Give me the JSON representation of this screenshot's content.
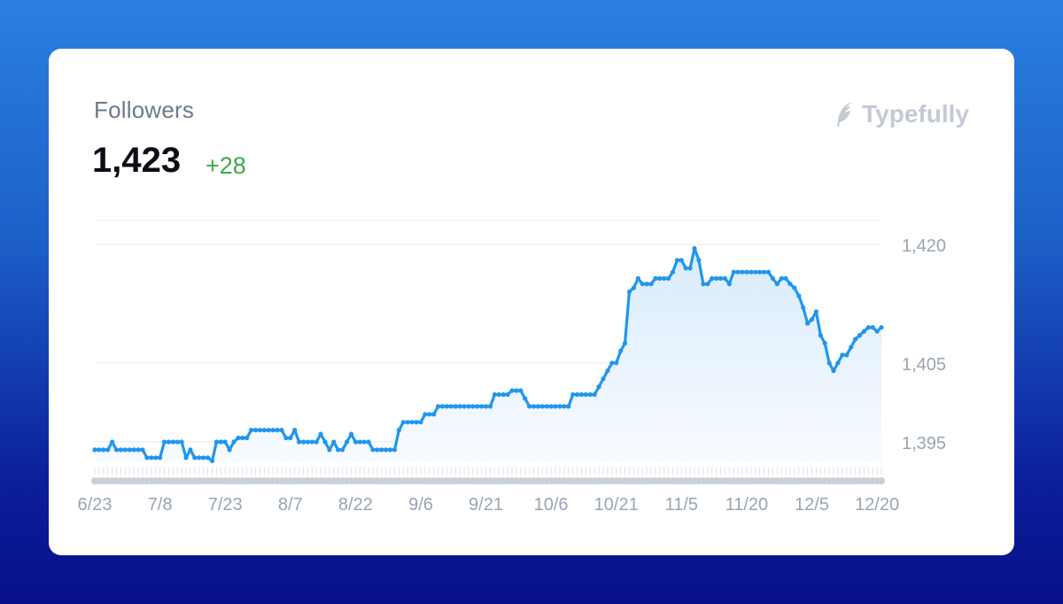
{
  "card": {
    "title": "Followers",
    "value": "1,423",
    "delta": "+28"
  },
  "brand": {
    "name": "Typefully",
    "icon": "feather-icon"
  },
  "colors": {
    "line": "#2196ee",
    "fill": "#e8f3fd",
    "grid": "#e6ebf0",
    "axis_text": "#9aa5b1",
    "delta": "#3aab47",
    "marker": "#c9d0d7"
  },
  "chart_data": {
    "type": "line",
    "title": "Followers",
    "xlabel": "",
    "ylabel": "",
    "x_ticks": [
      "6/23",
      "7/8",
      "7/23",
      "8/7",
      "8/22",
      "9/6",
      "9/21",
      "10/6",
      "10/21",
      "11/5",
      "11/20",
      "12/5",
      "12/20"
    ],
    "y_ticks": [
      "1,395",
      "1,405",
      "1,420"
    ],
    "y_tick_values": [
      1395,
      1405,
      1420
    ],
    "ylim": [
      1392.5,
      1423.3
    ],
    "x_range": [
      "6/23",
      "12/21"
    ],
    "grid": true,
    "series": [
      {
        "name": "",
        "points": [
          [
            "6/23",
            1394
          ],
          [
            "6/26",
            1394
          ],
          [
            "6/27",
            1395
          ],
          [
            "6/28",
            1394
          ],
          [
            "7/4",
            1394
          ],
          [
            "7/5",
            1393
          ],
          [
            "7/8",
            1393
          ],
          [
            "7/9",
            1395
          ],
          [
            "7/13",
            1395
          ],
          [
            "7/14",
            1393
          ],
          [
            "7/15",
            1394
          ],
          [
            "7/16",
            1393
          ],
          [
            "7/19",
            1393
          ],
          [
            "7/20",
            1392.6
          ],
          [
            "7/21",
            1395
          ],
          [
            "7/23",
            1395
          ],
          [
            "7/24",
            1394
          ],
          [
            "7/25",
            1395
          ],
          [
            "7/26",
            1395.5
          ],
          [
            "7/28",
            1395.5
          ],
          [
            "7/29",
            1396.5
          ],
          [
            "8/5",
            1396.5
          ],
          [
            "8/6",
            1395.5
          ],
          [
            "8/7",
            1395.5
          ],
          [
            "8/8",
            1396.5
          ],
          [
            "8/9",
            1395
          ],
          [
            "8/13",
            1395
          ],
          [
            "8/14",
            1396
          ],
          [
            "8/15",
            1395
          ],
          [
            "8/16",
            1394
          ],
          [
            "8/17",
            1395
          ],
          [
            "8/18",
            1394
          ],
          [
            "8/19",
            1394
          ],
          [
            "8/20",
            1395
          ],
          [
            "8/21",
            1396
          ],
          [
            "8/22",
            1395
          ],
          [
            "8/25",
            1395
          ],
          [
            "8/26",
            1394
          ],
          [
            "8/31",
            1394
          ],
          [
            "9/1",
            1396.5
          ],
          [
            "9/2",
            1397.5
          ],
          [
            "9/6",
            1397.5
          ],
          [
            "9/7",
            1398.5
          ],
          [
            "9/9",
            1398.5
          ],
          [
            "9/10",
            1399.5
          ],
          [
            "9/22",
            1399.5
          ],
          [
            "9/23",
            1401
          ],
          [
            "9/26",
            1401
          ],
          [
            "9/27",
            1401.5
          ],
          [
            "9/29",
            1401.5
          ],
          [
            "9/30",
            1400.5
          ],
          [
            "10/1",
            1399.5
          ],
          [
            "10/10",
            1399.5
          ],
          [
            "10/11",
            1401
          ],
          [
            "10/16",
            1401
          ],
          [
            "10/17",
            1402
          ],
          [
            "10/18",
            1403
          ],
          [
            "10/19",
            1404
          ],
          [
            "10/20",
            1405
          ],
          [
            "10/21",
            1405
          ],
          [
            "10/22",
            1406.5
          ],
          [
            "10/23",
            1407.5
          ],
          [
            "10/24",
            1414
          ],
          [
            "10/25",
            1414.5
          ],
          [
            "10/26",
            1415.7
          ],
          [
            "10/27",
            1415
          ],
          [
            "10/29",
            1415
          ],
          [
            "10/30",
            1415.7
          ],
          [
            "11/2",
            1415.7
          ],
          [
            "11/3",
            1416.5
          ],
          [
            "11/4",
            1418
          ],
          [
            "11/5",
            1418
          ],
          [
            "11/6",
            1417
          ],
          [
            "11/7",
            1417
          ],
          [
            "11/8",
            1419.5
          ],
          [
            "11/9",
            1418
          ],
          [
            "11/10",
            1415
          ],
          [
            "11/11",
            1415
          ],
          [
            "11/12",
            1415.7
          ],
          [
            "11/15",
            1415.7
          ],
          [
            "11/16",
            1415
          ],
          [
            "11/17",
            1416.5
          ],
          [
            "11/25",
            1416.5
          ],
          [
            "11/26",
            1415.7
          ],
          [
            "11/27",
            1415
          ],
          [
            "11/28",
            1415.7
          ],
          [
            "11/29",
            1415.7
          ],
          [
            "11/30",
            1415
          ],
          [
            "12/1",
            1414.5
          ],
          [
            "12/2",
            1413.5
          ],
          [
            "12/3",
            1412
          ],
          [
            "12/4",
            1410
          ],
          [
            "12/5",
            1410.5
          ],
          [
            "12/6",
            1411.5
          ],
          [
            "12/7",
            1408.5
          ],
          [
            "12/8",
            1407.5
          ],
          [
            "12/9",
            1405
          ],
          [
            "12/10",
            1404
          ],
          [
            "12/11",
            1405
          ],
          [
            "12/12",
            1406
          ],
          [
            "12/13",
            1406
          ],
          [
            "12/14",
            1407
          ],
          [
            "12/15",
            1408
          ],
          [
            "12/16",
            1408.5
          ],
          [
            "12/17",
            1409
          ],
          [
            "12/18",
            1409.5
          ],
          [
            "12/19",
            1409.5
          ],
          [
            "12/20",
            1409
          ],
          [
            "12/21",
            1409.5
          ]
        ]
      }
    ]
  }
}
